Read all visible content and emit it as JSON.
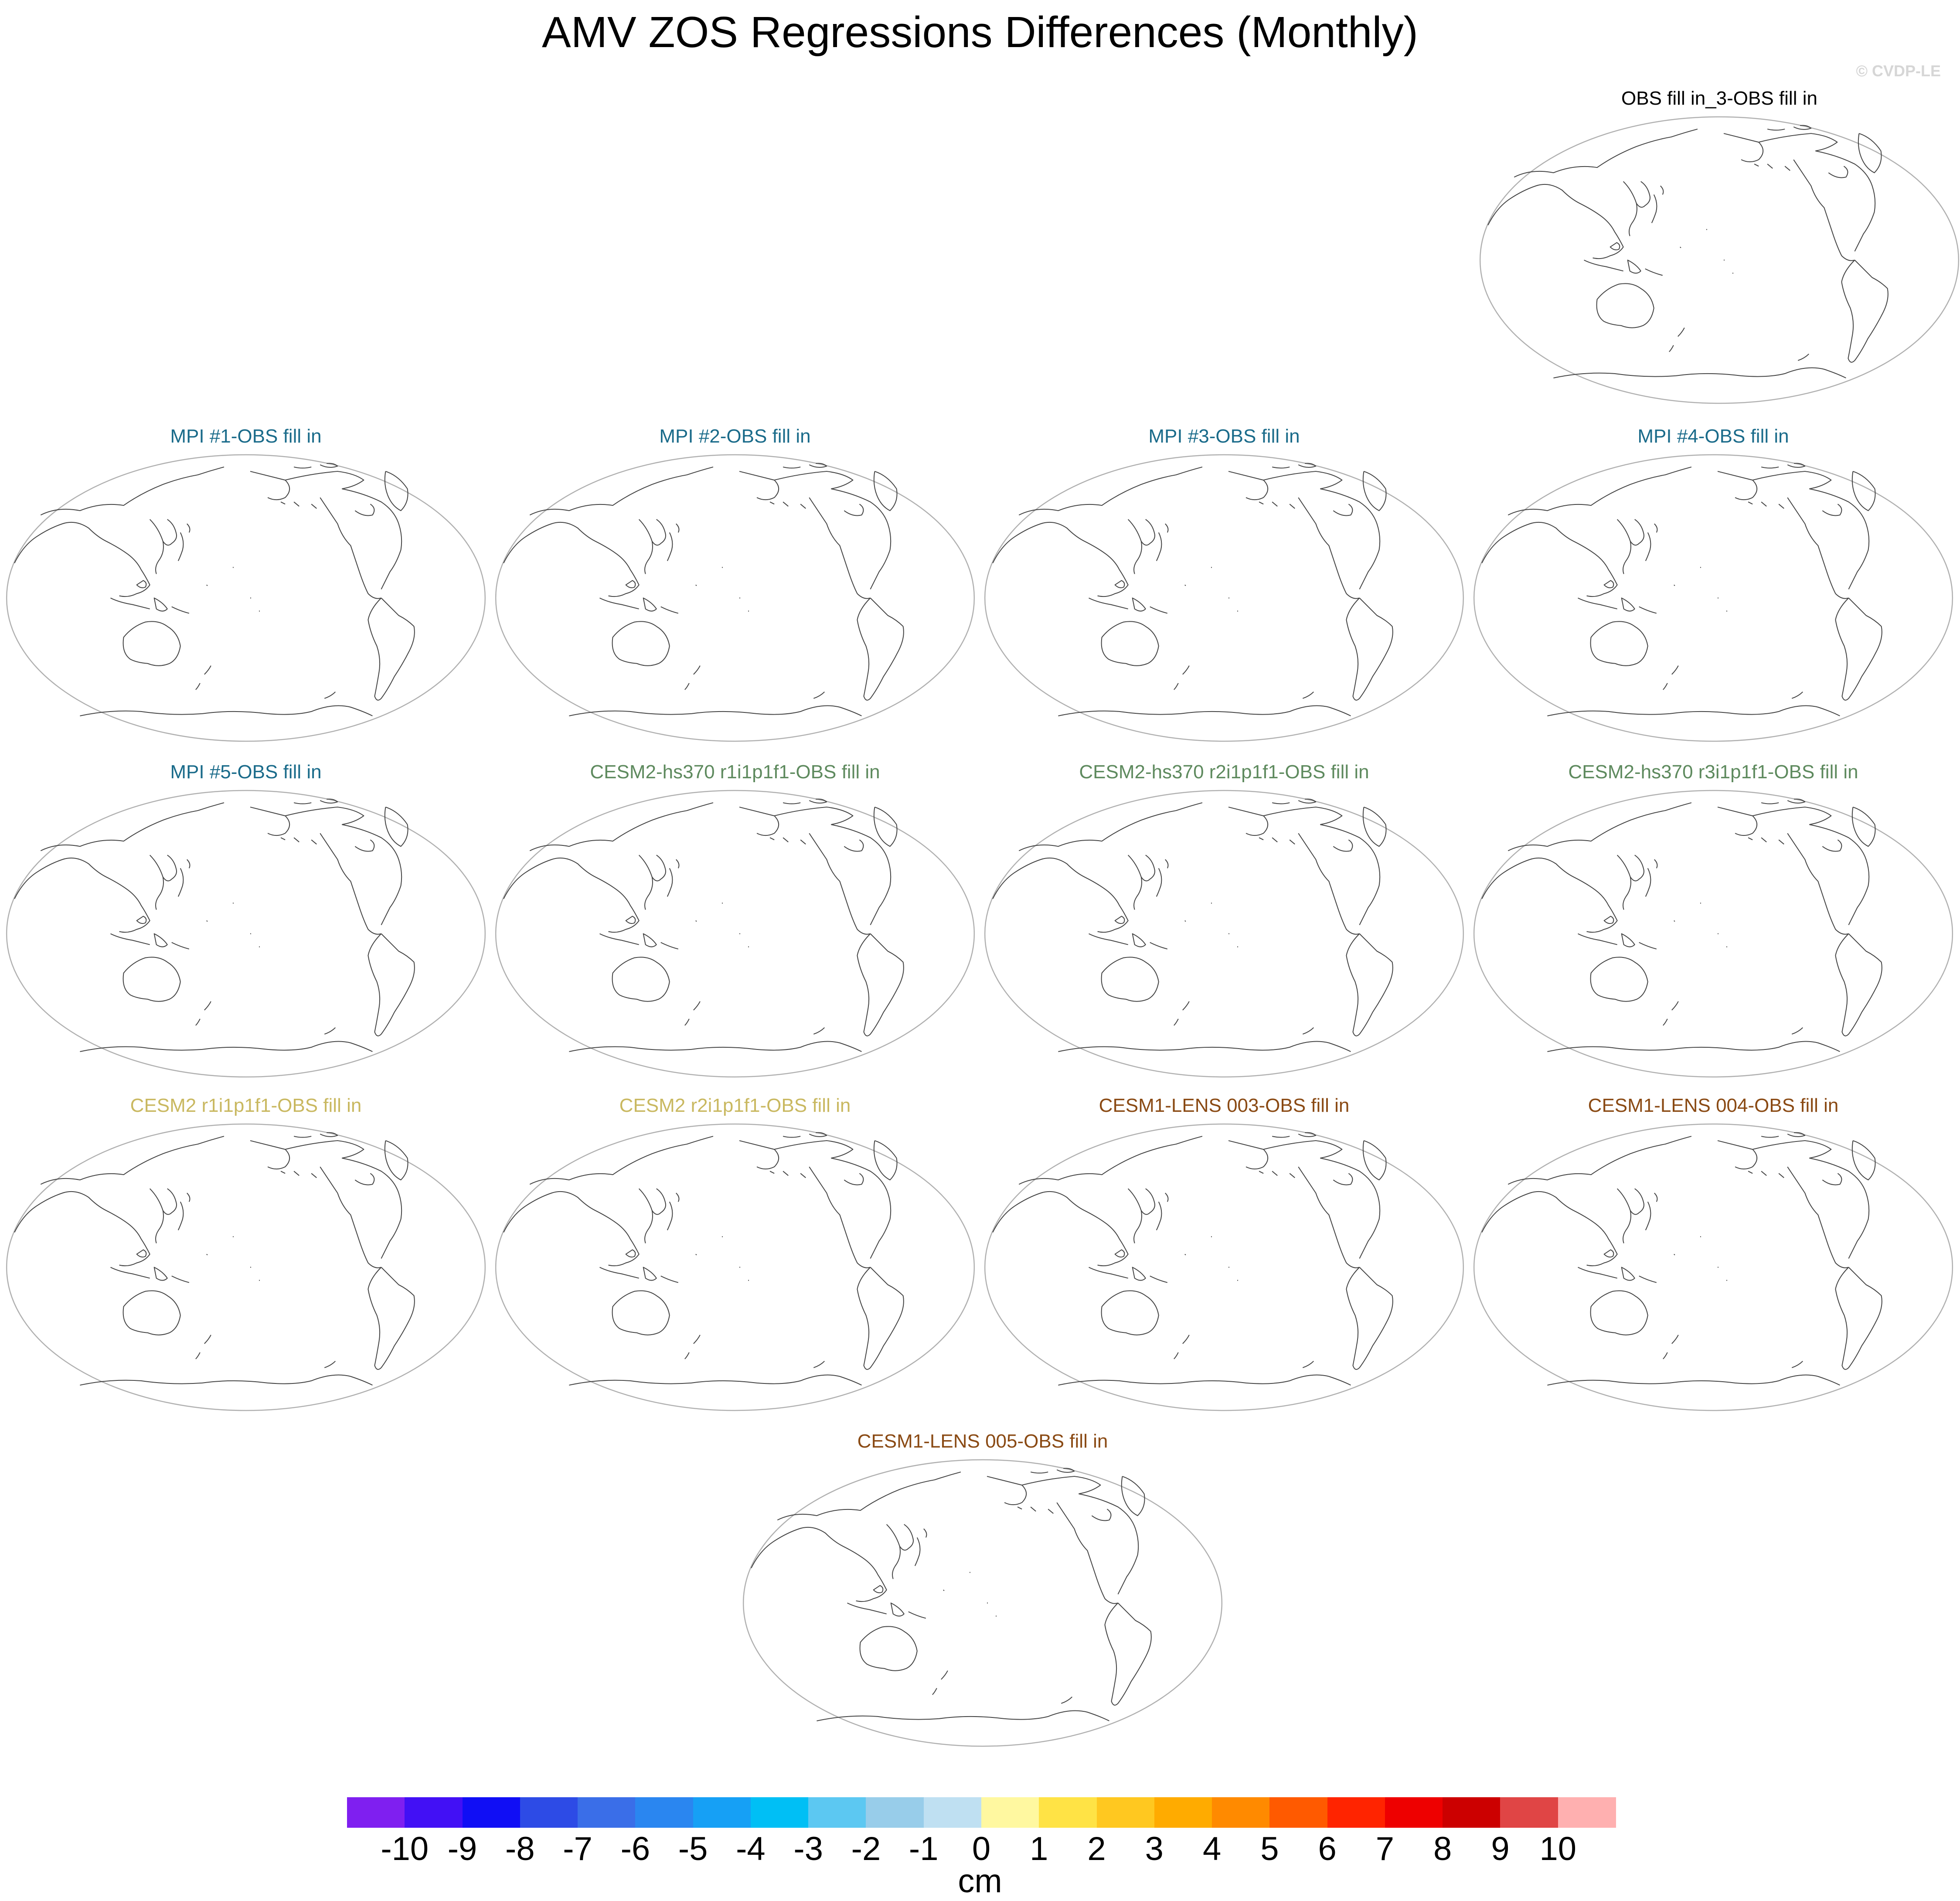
{
  "title": "AMV ZOS Regressions Differences (Monthly)",
  "watermark": "© CVDP-LE",
  "panels": [
    {
      "label": "OBS fill in_3-OBS fill in",
      "color": "#000000"
    },
    {
      "label": "MPI #1-OBS fill in",
      "color": "#1a6b8a"
    },
    {
      "label": "MPI #2-OBS fill in",
      "color": "#1a6b8a"
    },
    {
      "label": "MPI #3-OBS fill in",
      "color": "#1a6b8a"
    },
    {
      "label": "MPI #4-OBS fill in",
      "color": "#1a6b8a"
    },
    {
      "label": "MPI #5-OBS fill in",
      "color": "#1a6b8a"
    },
    {
      "label": "CESM2-hs370 r1i1p1f1-OBS fill in",
      "color": "#5e8a5e"
    },
    {
      "label": "CESM2-hs370 r2i1p1f1-OBS fill in",
      "color": "#5e8a5e"
    },
    {
      "label": "CESM2-hs370 r3i1p1f1-OBS fill in",
      "color": "#5e8a5e"
    },
    {
      "label": "CESM2 r1i1p1f1-OBS fill in",
      "color": "#c9b860"
    },
    {
      "label": "CESM2 r2i1p1f1-OBS fill in",
      "color": "#c9b860"
    },
    {
      "label": "CESM1-LENS 003-OBS fill in",
      "color": "#8a4a14"
    },
    {
      "label": "CESM1-LENS 004-OBS fill in",
      "color": "#8a4a14"
    },
    {
      "label": "CESM1-LENS 005-OBS fill in",
      "color": "#8a4a14"
    }
  ],
  "colorbar": {
    "colors": [
      "#7f1ff0",
      "#4210f5",
      "#100ef5",
      "#2d4be6",
      "#3a6ee8",
      "#2a86f0",
      "#16a0f5",
      "#00bff5",
      "#5cc8f2",
      "#98cdea",
      "#bfe0f2",
      "#fff8a0",
      "#ffe345",
      "#ffc820",
      "#ffab00",
      "#ff8a00",
      "#ff5a00",
      "#ff2400",
      "#ee0000",
      "#cc0000",
      "#e04545",
      "#ffb0b0"
    ],
    "labels": [
      "-10",
      "-9",
      "-8",
      "-7",
      "-6",
      "-5",
      "-4",
      "-3",
      "-2",
      "-1",
      "0",
      "1",
      "2",
      "3",
      "4",
      "5",
      "6",
      "7",
      "8",
      "9",
      "10"
    ],
    "units": "cm"
  }
}
